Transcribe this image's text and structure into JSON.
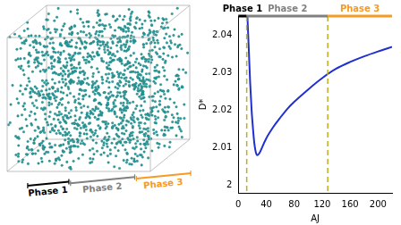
{
  "chart_data": {
    "type": "line",
    "x_label": "AJ",
    "y_label": "D*",
    "x": [
      13,
      15,
      17,
      19,
      21,
      23,
      25,
      27,
      30,
      35,
      40,
      50,
      60,
      70,
      80,
      100,
      120,
      140,
      160,
      180,
      200,
      220
    ],
    "values": [
      2.045,
      2.036,
      2.027,
      2.02,
      2.015,
      2.011,
      2.0088,
      2.008,
      2.0085,
      2.0105,
      2.0125,
      2.0155,
      2.018,
      2.0203,
      2.0222,
      2.0255,
      2.0285,
      2.031,
      2.0328,
      2.0343,
      2.0356,
      2.0368
    ],
    "color": "#1f2fd0",
    "xlim": [
      0,
      220
    ],
    "ylim": [
      1.998,
      2.045
    ],
    "xticks": [
      0,
      40,
      80,
      120,
      160,
      200
    ],
    "yticks": [
      2,
      2.01,
      2.02,
      2.03,
      2.04
    ],
    "grid": false,
    "phases": [
      {
        "name": "Phase 1",
        "start": 0,
        "end": 12,
        "color": "#000000"
      },
      {
        "name": "Phase 2",
        "start": 12,
        "end": 128,
        "color": "#808080"
      },
      {
        "name": "Phase 3",
        "start": 128,
        "end": 220,
        "color": "#f59a23"
      }
    ],
    "vlines": [
      {
        "x": 12,
        "color": "#bdb020",
        "line_style": "dashed"
      },
      {
        "x": 128,
        "color": "#bdb020",
        "line_style": "dashed"
      }
    ]
  },
  "illustration": {
    "labels": [
      "Phase 1",
      "Phase 2",
      "Phase 3"
    ]
  }
}
